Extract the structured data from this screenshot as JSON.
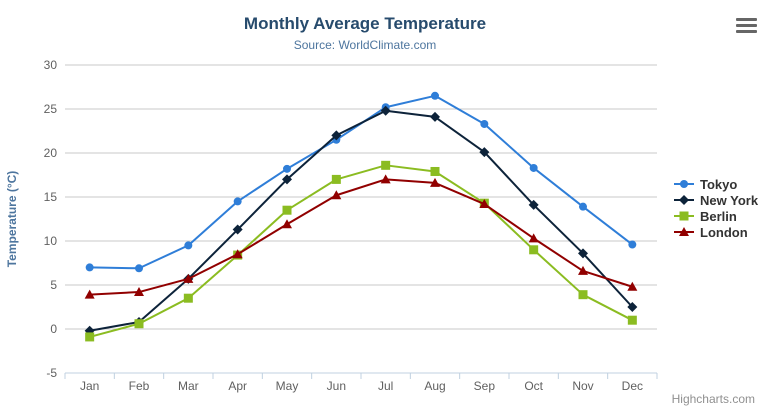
{
  "chart": {
    "credits_label": "Highcharts.com",
    "context_menu_icon": "hamburger-menu-icon"
  },
  "colors": {
    "background": "#ffffff",
    "title": "#274b6d",
    "subtitle": "#4d759e",
    "axis_title": "#4d759e",
    "axis_label": "#606060",
    "grid": "#c8c8c8",
    "axis_line": "#c0d0e0",
    "legend_text": "#333333",
    "credits": "#909090"
  },
  "chart_data": {
    "type": "line",
    "title": "Monthly Average Temperature",
    "subtitle": "Source: WorldClimate.com",
    "xlabel": "",
    "ylabel": "Temperature (°C)",
    "ylim": [
      -5,
      30
    ],
    "yticks": [
      -5,
      0,
      5,
      10,
      15,
      20,
      25,
      30
    ],
    "grid": true,
    "legend_position": "right",
    "categories": [
      "Jan",
      "Feb",
      "Mar",
      "Apr",
      "May",
      "Jun",
      "Jul",
      "Aug",
      "Sep",
      "Oct",
      "Nov",
      "Dec"
    ],
    "series": [
      {
        "name": "Tokyo",
        "color": "#2f7ed8",
        "marker": "circle",
        "values": [
          7.0,
          6.9,
          9.5,
          14.5,
          18.2,
          21.5,
          25.2,
          26.5,
          23.3,
          18.3,
          13.9,
          9.6
        ]
      },
      {
        "name": "New York",
        "color": "#0d233a",
        "marker": "diamond",
        "values": [
          -0.2,
          0.8,
          5.7,
          11.3,
          17.0,
          22.0,
          24.8,
          24.1,
          20.1,
          14.1,
          8.6,
          2.5
        ]
      },
      {
        "name": "Berlin",
        "color": "#8bbc21",
        "marker": "square",
        "values": [
          -0.9,
          0.6,
          3.5,
          8.4,
          13.5,
          17.0,
          18.6,
          17.9,
          14.3,
          9.0,
          3.9,
          1.0
        ]
      },
      {
        "name": "London",
        "color": "#910000",
        "marker": "triangle",
        "values": [
          3.9,
          4.2,
          5.7,
          8.5,
          11.9,
          15.2,
          17.0,
          16.6,
          14.2,
          10.3,
          6.6,
          4.8
        ]
      }
    ]
  }
}
